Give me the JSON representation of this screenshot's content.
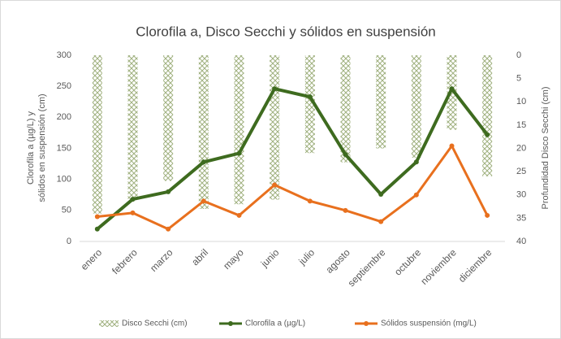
{
  "chart_data": {
    "type": "combo",
    "title": "Clorofila a, Disco Secchi y sólidos en suspensión",
    "ylabel": [
      "Clorofila a  (µg/L) y",
      "sólidos en suspensión (cm)"
    ],
    "y2label": "Profundidad Disco Secchi (cm)",
    "categories": [
      "enero",
      "febrero",
      "marzo",
      "abril",
      "mayo",
      "junio",
      "julio",
      "agosto",
      "septiembre",
      "octubre",
      "noviembre",
      "diciembre"
    ],
    "series": [
      {
        "name": "Disco Secchi (cm)",
        "type": "bar",
        "axis": "y2",
        "color": "#9fb07e",
        "values": [
          34,
          31,
          27,
          33,
          32,
          31,
          21,
          23,
          20,
          22,
          16,
          26
        ]
      },
      {
        "name": "Clorofila a (µg/L)",
        "type": "line",
        "color": "#3e6b1f",
        "values": [
          20,
          68,
          80,
          128,
          142,
          246,
          233,
          140,
          76,
          128,
          246,
          172
        ]
      },
      {
        "name": "Sólidos suspensión (mg/L)",
        "type": "line",
        "color": "#e8701e",
        "values": [
          40,
          46,
          20,
          65,
          42,
          91,
          65,
          50,
          32,
          75,
          154,
          42
        ]
      }
    ],
    "ylim": [
      0,
      300
    ],
    "yticks": [
      0,
      50,
      100,
      150,
      200,
      250,
      300
    ],
    "y2lim": [
      0,
      40
    ],
    "y2ticks": [
      0,
      5,
      10,
      15,
      20,
      25,
      30,
      35,
      40
    ],
    "y2_inverted": true,
    "legend": "bottom"
  }
}
